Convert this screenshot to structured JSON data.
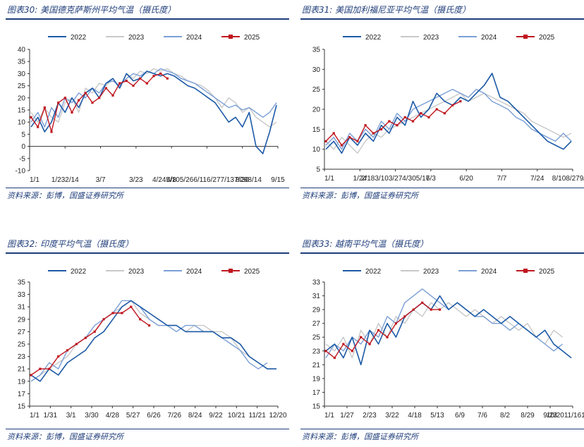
{
  "panels": [
    {
      "title": "图表30: 美国德克萨斯州平均气温（摄氏度）",
      "source": "资料来源：彭博，国盛证券研究所",
      "chart_data": {
        "type": "line",
        "ylim": [
          -10,
          40
        ],
        "yticks": [
          "-10",
          "-5",
          "0",
          "5",
          "10",
          "15",
          "20",
          "25",
          "30",
          "35",
          "40"
        ],
        "xticks": [
          "1/1",
          "1/23",
          "2/14",
          "3/7",
          "3/23",
          "4/8",
          "4/24",
          "5/10",
          "5/26",
          "6/11",
          "6/27",
          "7/13",
          "7/29",
          "8/14",
          "8/30",
          "9/15"
        ],
        "xlabels_shown": [
          "1/1",
          "1/232/14",
          "3/7",
          "3/23",
          "4/8",
          "4/245/105/266/116/277/137/298/14",
          "8/30",
          "9/15"
        ],
        "legend": [
          "2022",
          "2023",
          "2024",
          "2025"
        ],
        "series": [
          {
            "name": "2022",
            "values": [
              8,
              12,
              6,
              10,
              18,
              14,
              20,
              16,
              22,
              24,
              20,
              26,
              28,
              24,
              30,
              27,
              28,
              31,
              30,
              29,
              30,
              29,
              27,
              25,
              24,
              22,
              20,
              18,
              14,
              10,
              12,
              8,
              14,
              0,
              -3,
              6,
              17
            ]
          },
          {
            "name": "2023",
            "values": [
              14,
              10,
              16,
              12,
              10,
              18,
              20,
              14,
              24,
              22,
              26,
              25,
              28,
              24,
              30,
              28,
              31,
              30,
              32,
              31,
              32,
              30,
              29,
              27,
              26,
              25,
              23,
              20,
              16,
              20,
              18,
              14,
              16,
              12,
              10,
              8,
              10
            ]
          },
          {
            "name": "2024",
            "values": [
              10,
              14,
              8,
              16,
              12,
              20,
              18,
              22,
              20,
              24,
              22,
              26,
              27,
              25,
              28,
              30,
              29,
              31,
              30,
              32,
              31,
              30,
              28,
              27,
              26,
              24,
              22,
              20,
              18,
              16,
              17,
              15,
              16,
              14,
              12,
              14,
              18
            ]
          },
          {
            "name": "2025",
            "values": [
              12,
              8,
              16,
              6,
              18,
              20,
              14,
              19,
              22,
              18,
              20,
              24,
              21,
              26,
              27,
              25,
              28,
              26,
              29,
              30,
              28
            ]
          }
        ]
      }
    },
    {
      "title": "图表31: 美国加利福尼亚平均气温（摄氏度）",
      "source": "资料来源：彭博，国盛证券研究所",
      "chart_data": {
        "type": "line",
        "ylim": [
          5,
          35
        ],
        "yticks": [
          "5",
          "10",
          "15",
          "20",
          "25",
          "30",
          "35"
        ],
        "xticks": [
          "1/1",
          "1/24",
          "2/18",
          "3/10",
          "3/27",
          "4/30",
          "5/17",
          "6/3",
          "6/20",
          "7/7",
          "7/24",
          "8/10",
          "8/27",
          "9/13"
        ],
        "xlabels_shown": [
          "1/1",
          "1/24",
          "2/183/103/274/305/17",
          "6/3",
          "6/20",
          "7/7",
          "7/24",
          "8/108/279/13"
        ],
        "legend": [
          "2022",
          "2023",
          "2024",
          "2025"
        ],
        "series": [
          {
            "name": "2022",
            "values": [
              10,
              12,
              9,
              13,
              11,
              14,
              12,
              16,
              14,
              18,
              16,
              22,
              18,
              20,
              24,
              22,
              21,
              23,
              22,
              24,
              26,
              29,
              23,
              22,
              20,
              18,
              16,
              14,
              12,
              11,
              10,
              12
            ]
          },
          {
            "name": "2023",
            "values": [
              12,
              10,
              13,
              11,
              9,
              12,
              14,
              13,
              15,
              16,
              17,
              18,
              19,
              20,
              21,
              22,
              23,
              24,
              22,
              23,
              24,
              23,
              22,
              21,
              20,
              19,
              17,
              16,
              15,
              14,
              13,
              14
            ]
          },
          {
            "name": "2024",
            "values": [
              11,
              13,
              10,
              14,
              12,
              15,
              13,
              17,
              15,
              19,
              17,
              20,
              21,
              22,
              23,
              24,
              25,
              24,
              23,
              25,
              24,
              22,
              21,
              20,
              18,
              17,
              15,
              14,
              13,
              12,
              14,
              12
            ]
          },
          {
            "name": "2025",
            "values": [
              12,
              14,
              11,
              13,
              12,
              16,
              14,
              15,
              17,
              16,
              18,
              17,
              19,
              18,
              20,
              19,
              21,
              22
            ]
          }
        ]
      }
    },
    {
      "title": "图表32: 印度平均气温（摄氏度）",
      "source": "资料来源：彭博，国盛证券研究所",
      "chart_data": {
        "type": "line",
        "ylim": [
          15,
          35
        ],
        "yticks": [
          "15",
          "17",
          "19",
          "21",
          "23",
          "25",
          "27",
          "29",
          "31",
          "33",
          "35"
        ],
        "xticks": [
          "1/1",
          "1/31",
          "3/1",
          "3/30",
          "4/28",
          "5/27",
          "6/26",
          "7/26",
          "8/24",
          "9/22",
          "10/21",
          "11/21",
          "12/20"
        ],
        "xlabels_shown": [
          "1/1",
          "1/31",
          "3/1",
          "3/30",
          "4/28",
          "5/27",
          "6/26",
          "7/26",
          "8/24",
          "9/22",
          "10/21",
          "11/21",
          "12/20"
        ],
        "legend": [
          "2022",
          "2023",
          "2024",
          "2025"
        ],
        "series": [
          {
            "name": "2022",
            "values": [
              20,
              19,
              21,
              20,
              22,
              23,
              24,
              26,
              27,
              29,
              31,
              32,
              31,
              30,
              29,
              28,
              28,
              27,
              27,
              27,
              27,
              26,
              26,
              25,
              23,
              22,
              21,
              21
            ]
          },
          {
            "name": "2023",
            "values": [
              19,
              20,
              21,
              22,
              23,
              25,
              26,
              27,
              29,
              30,
              31,
              32,
              30,
              29,
              28,
              28,
              28,
              27,
              28,
              28,
              27,
              27,
              26,
              24,
              23,
              22,
              21
            ]
          },
          {
            "name": "2024",
            "values": [
              19,
              20,
              22,
              21,
              24,
              25,
              26,
              28,
              29,
              30,
              32,
              32,
              31,
              29,
              28,
              28,
              27,
              28,
              28,
              27,
              27,
              26,
              25,
              24,
              22,
              21,
              22
            ]
          },
          {
            "name": "2025",
            "values": [
              20,
              21,
              21,
              23,
              24,
              25,
              26,
              27,
              29,
              30,
              30,
              31,
              29,
              28
            ]
          }
        ]
      }
    },
    {
      "title": "图表33: 越南平均气温（摄氏度）",
      "source": "资料来源：彭博，国盛证券研究所",
      "chart_data": {
        "type": "line",
        "ylim": [
          15,
          33
        ],
        "yticks": [
          "15",
          "17",
          "19",
          "21",
          "23",
          "25",
          "27",
          "29",
          "31",
          "33"
        ],
        "xticks": [
          "1/1",
          "1/27",
          "2/23",
          "3/22",
          "4/18",
          "5/13",
          "6/9",
          "7/6",
          "8/2",
          "8/29",
          "9/23",
          "10/20",
          "11/16",
          "12/13"
        ],
        "xlabels_shown": [
          "1/1",
          "1/27",
          "2/23",
          "3/22",
          "4/18",
          "5/13",
          "6/9",
          "7/6",
          "8/2",
          "8/29",
          "9/23",
          "10/2011/1612/13"
        ],
        "legend": [
          "2022",
          "2023",
          "2024",
          "2025"
        ],
        "series": [
          {
            "name": "2022",
            "values": [
              23,
              24,
              22,
              25,
              21,
              26,
              24,
              27,
              25,
              28,
              29,
              30,
              29,
              31,
              29,
              30,
              29,
              28,
              29,
              28,
              27,
              28,
              27,
              26,
              25,
              26,
              24,
              23,
              22
            ]
          },
          {
            "name": "2023",
            "values": [
              24,
              23,
              25,
              22,
              26,
              24,
              27,
              25,
              28,
              27,
              29,
              28,
              30,
              29,
              30,
              29,
              28,
              29,
              28,
              27,
              28,
              27,
              26,
              27,
              25,
              24,
              26,
              25
            ]
          },
          {
            "name": "2024",
            "values": [
              22,
              24,
              23,
              25,
              24,
              26,
              25,
              28,
              27,
              30,
              31,
              32,
              31,
              30,
              29,
              30,
              29,
              28,
              28,
              27,
              27,
              26,
              27,
              26,
              25,
              24,
              23,
              24
            ]
          },
          {
            "name": "2025",
            "values": [
              23,
              22,
              24,
              23,
              25,
              24,
              26,
              25,
              27,
              28,
              29,
              30,
              29,
              29
            ]
          }
        ]
      }
    }
  ],
  "colors": {
    "2022": "#1c5aa6",
    "2023": "#c8c8c8",
    "2024": "#7a9fd6",
    "2025": "#c0161f"
  }
}
